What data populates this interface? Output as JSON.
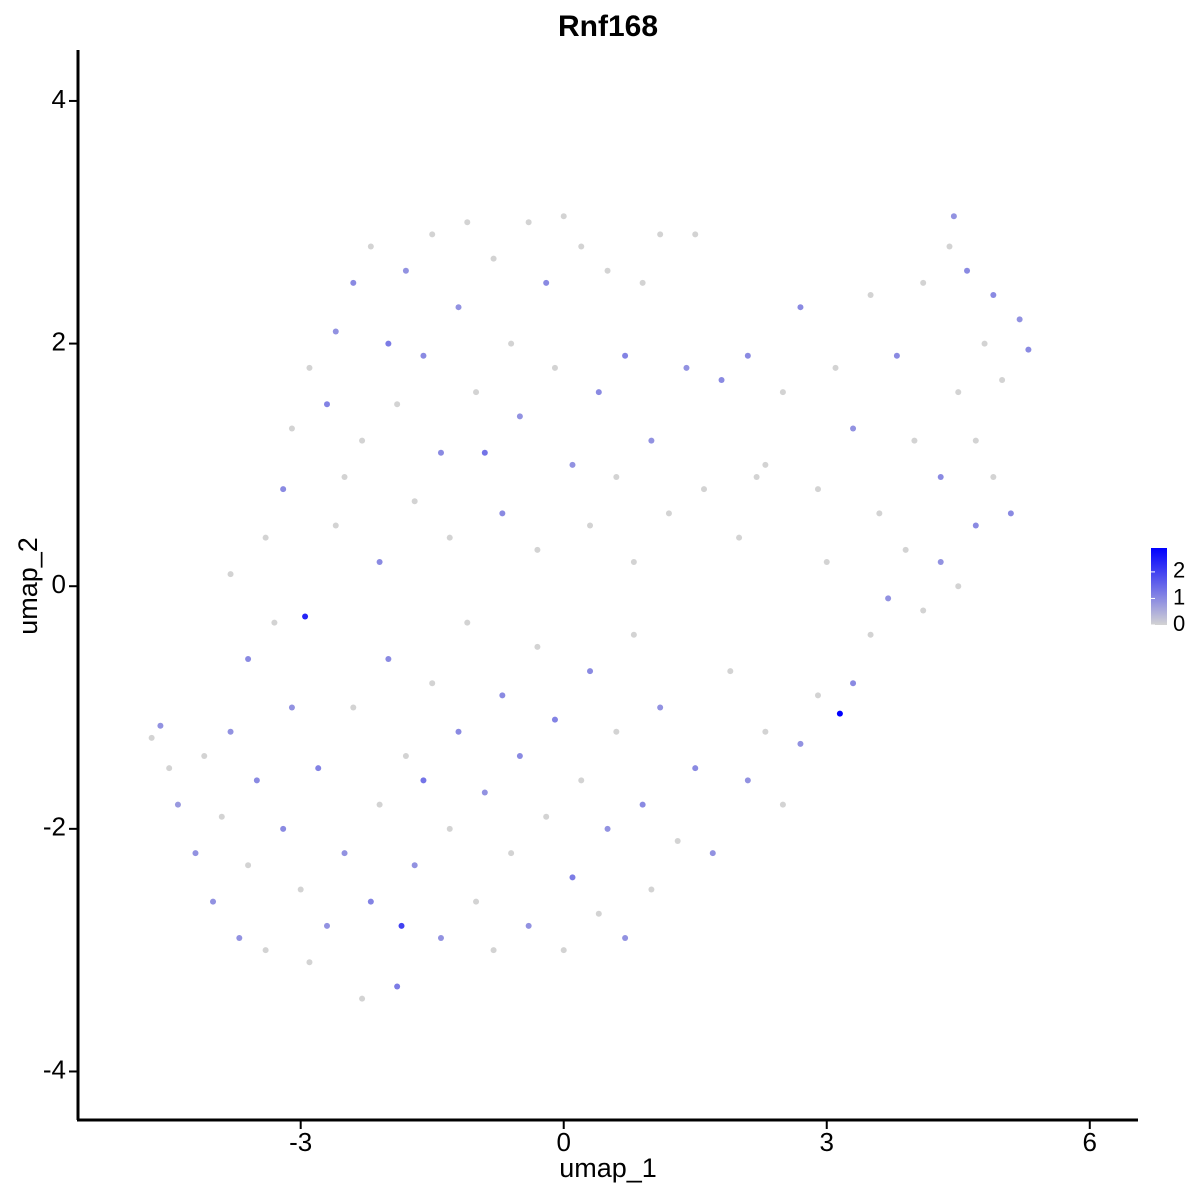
{
  "chart_data": {
    "type": "scatter",
    "title": "Rnf168",
    "x_label": "umap_1",
    "y_label": "umap_2",
    "xlim": [
      -5.54,
      6.55
    ],
    "ylim": [
      -4.4,
      4.42
    ],
    "xticks": [
      -3,
      0,
      3,
      6
    ],
    "yticks": [
      -4,
      -2,
      0,
      2,
      4
    ],
    "color_low": "#d3d3d3",
    "color_high": "#0000ff",
    "clim": [
      0,
      2.9
    ],
    "cticks": [
      0,
      1,
      2
    ],
    "x": [
      -4.7,
      -4.6,
      -4.5,
      -4.4,
      -4.2,
      -4.1,
      -4.0,
      -3.9,
      -3.8,
      -3.7,
      -3.6,
      -3.5,
      -3.4,
      -3.3,
      -3.2,
      -3.1,
      -3.0,
      -2.95,
      -2.9,
      -2.8,
      -2.7,
      -2.6,
      -2.5,
      -2.4,
      -2.3,
      -2.2,
      -2.1,
      -2.0,
      -1.9,
      -1.85,
      -1.8,
      -1.7,
      -1.6,
      -1.5,
      -1.4,
      -1.3,
      -1.2,
      -1.1,
      -1.0,
      -0.9,
      -0.8,
      -0.7,
      -0.6,
      -0.5,
      -0.4,
      -0.3,
      -0.2,
      -0.1,
      0.0,
      0.1,
      0.2,
      0.3,
      0.4,
      0.5,
      0.6,
      0.7,
      0.8,
      0.9,
      1.0,
      1.1,
      1.3,
      1.5,
      1.7,
      1.9,
      2.1,
      2.3,
      2.5,
      2.7,
      2.9,
      3.3,
      3.5,
      3.7,
      3.9,
      4.1,
      4.3,
      4.5,
      4.7,
      4.9,
      5.1,
      -3.8,
      -3.6,
      -3.4,
      -3.2,
      -3.1,
      -2.9,
      -2.7,
      -2.6,
      -2.5,
      -2.4,
      -2.3,
      -2.2,
      -2.1,
      -2.0,
      -1.9,
      -1.8,
      -1.7,
      -1.6,
      -1.5,
      -1.4,
      -1.3,
      -1.2,
      -1.1,
      -1.0,
      -0.9,
      -0.8,
      -0.7,
      -0.6,
      -0.5,
      -0.4,
      -0.3,
      -0.2,
      -0.1,
      0.0,
      0.1,
      0.2,
      0.3,
      0.4,
      0.5,
      0.6,
      0.7,
      0.8,
      0.9,
      1.0,
      1.1,
      1.2,
      1.4,
      1.6,
      1.8,
      2.0,
      2.1,
      2.3,
      2.5,
      2.7,
      2.9,
      3.1,
      3.3,
      3.5,
      3.6,
      3.8,
      4.0,
      4.1,
      4.3,
      4.4,
      4.5,
      4.6,
      4.7,
      4.8,
      4.9,
      5.0,
      5.2,
      5.3,
      4.45,
      1.5,
      2.2,
      3.0,
      3.15
    ],
    "y": [
      -1.25,
      -1.15,
      -1.5,
      -1.8,
      -2.2,
      -1.4,
      -2.6,
      -1.9,
      -1.2,
      -2.9,
      -2.3,
      -1.6,
      -3.0,
      -0.3,
      -2.0,
      -1.0,
      -2.5,
      -0.25,
      -3.1,
      -1.5,
      -2.8,
      0.5,
      -2.2,
      -1.0,
      -3.4,
      -2.6,
      -1.8,
      -0.6,
      -3.3,
      -2.8,
      -1.4,
      -2.3,
      -1.6,
      -0.8,
      -2.9,
      -2.0,
      -1.2,
      -0.3,
      -2.6,
      -1.7,
      -3.0,
      -0.9,
      -2.2,
      -1.4,
      -2.8,
      -0.5,
      -1.9,
      -1.1,
      -3.0,
      -2.4,
      -1.6,
      -0.7,
      -2.7,
      -2.0,
      -1.2,
      -2.9,
      -0.4,
      -1.8,
      -2.5,
      -1.0,
      -2.1,
      -1.5,
      -2.2,
      -0.7,
      -1.6,
      -1.2,
      -1.8,
      -1.3,
      -0.9,
      -0.8,
      -0.4,
      -0.1,
      0.3,
      -0.2,
      0.2,
      0.0,
      0.5,
      0.9,
      0.6,
      0.1,
      -0.6,
      0.4,
      0.8,
      1.3,
      1.8,
      1.5,
      2.1,
      0.9,
      2.5,
      1.2,
      2.8,
      0.2,
      2.0,
      1.5,
      2.6,
      0.7,
      1.9,
      2.9,
      1.1,
      0.4,
      2.3,
      3.0,
      1.6,
      1.1,
      2.7,
      0.6,
      2.0,
      1.4,
      3.0,
      0.3,
      2.5,
      1.8,
      3.05,
      1.0,
      2.8,
      0.5,
      1.6,
      2.6,
      0.9,
      1.9,
      0.2,
      2.5,
      1.2,
      2.9,
      0.6,
      1.8,
      0.8,
      1.7,
      0.4,
      1.9,
      1.0,
      1.6,
      2.3,
      0.8,
      1.8,
      1.3,
      2.4,
      0.6,
      1.9,
      1.2,
      2.5,
      0.9,
      2.8,
      1.6,
      2.6,
      1.2,
      2.0,
      2.4,
      1.7,
      2.2,
      1.95,
      3.05,
      2.9,
      0.9,
      0.2,
      -1.05
    ],
    "values": [
      0,
      0.9,
      0,
      0.8,
      0.9,
      0,
      0.9,
      0,
      0.9,
      0.9,
      0,
      1.0,
      0,
      0,
      1.0,
      0.9,
      0,
      2.4,
      0,
      1.1,
      0.9,
      0,
      0.9,
      0,
      0,
      1.1,
      0,
      1.0,
      1.2,
      2.0,
      0,
      0.9,
      1.3,
      0,
      0.9,
      0,
      1.0,
      0,
      0,
      0.9,
      0,
      1.0,
      0,
      1.0,
      0.9,
      0,
      0,
      1.1,
      0,
      1.2,
      0,
      1.0,
      0,
      0.9,
      0,
      0.9,
      0,
      1.0,
      0,
      0.9,
      0,
      1.0,
      0.9,
      0,
      0.9,
      0,
      0,
      0.9,
      0,
      1.0,
      0,
      0.9,
      0,
      0,
      0.9,
      0,
      1.0,
      0,
      1.0,
      0,
      1.0,
      0,
      1.0,
      0,
      0,
      1.1,
      0.9,
      0,
      1.0,
      0,
      0,
      1.0,
      1.2,
      0,
      0.9,
      0,
      1.0,
      0,
      1.0,
      0,
      0.9,
      0,
      0,
      1.3,
      0,
      1.0,
      0,
      0.9,
      0,
      0,
      1.0,
      0,
      0,
      0.9,
      0,
      0,
      1.0,
      0,
      0,
      1.1,
      0,
      0,
      0.9,
      0,
      0,
      0.9,
      0,
      1.0,
      0,
      1.0,
      0,
      0,
      1.0,
      0,
      0,
      0.9,
      0,
      0,
      1.0,
      0,
      0,
      1.0,
      0,
      0,
      1.0,
      0,
      0,
      1.0,
      0,
      0.9,
      1.0,
      0.9,
      0,
      0,
      0,
      2.9
    ]
  }
}
